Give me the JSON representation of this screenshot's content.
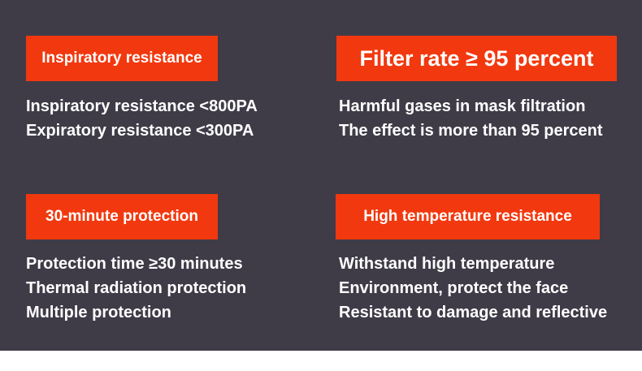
{
  "colors": {
    "background": "#3f3c48",
    "accent": "#f2380e",
    "text": "#ffffff"
  },
  "features": [
    {
      "title": "Inspiratory resistance",
      "lines": [
        "Inspiratory resistance <800PA",
        "Expiratory resistance <300PA"
      ]
    },
    {
      "title": "Filter rate ≥ 95 percent",
      "lines": [
        "Harmful gases in mask filtration",
        "The effect is more than 95 percent"
      ]
    },
    {
      "title": "30-minute protection",
      "lines": [
        "Protection time ≥30 minutes",
        "Thermal radiation protection",
        "Multiple protection"
      ]
    },
    {
      "title": "High temperature resistance",
      "lines": [
        "Withstand high temperature",
        "Environment, protect the face",
        "Resistant to damage and reflective"
      ]
    }
  ]
}
